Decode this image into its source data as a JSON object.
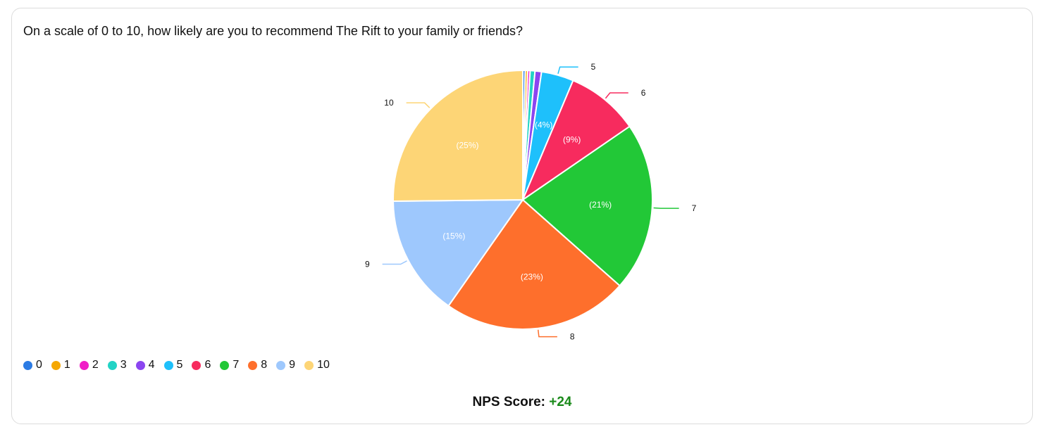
{
  "question": "On a scale of 0 to 10, how likely are you to recommend The Rift to your family or friends?",
  "chart_data": {
    "type": "pie",
    "categories": [
      "0",
      "1",
      "2",
      "3",
      "4",
      "5",
      "6",
      "7",
      "8",
      "9",
      "10"
    ],
    "values": [
      0.3,
      0.3,
      0.3,
      0.6,
      0.8,
      4,
      9,
      21,
      23,
      15,
      25
    ],
    "colors": [
      "#2b7be4",
      "#f5a700",
      "#f01ec7",
      "#22d3c5",
      "#8b45f0",
      "#1ec0fb",
      "#f72b5e",
      "#22c837",
      "#fe6f2c",
      "#9ec8fd",
      "#fdd576"
    ],
    "slice_labels": [
      "",
      "",
      "",
      "",
      "",
      "(4%)",
      "(9%)",
      "(21%)",
      "(23%)",
      "(15%)",
      "(25%)"
    ],
    "outer_labels": [
      "",
      "",
      "",
      "",
      "",
      "5",
      "6",
      "7",
      "8",
      "9",
      "10"
    ],
    "legend": {
      "position": "bottom-left",
      "items": [
        "0",
        "1",
        "2",
        "3",
        "4",
        "5",
        "6",
        "7",
        "8",
        "9",
        "10"
      ]
    }
  },
  "nps": {
    "label": "NPS Score:",
    "value": "+24",
    "value_color": "#1a8a1a"
  }
}
